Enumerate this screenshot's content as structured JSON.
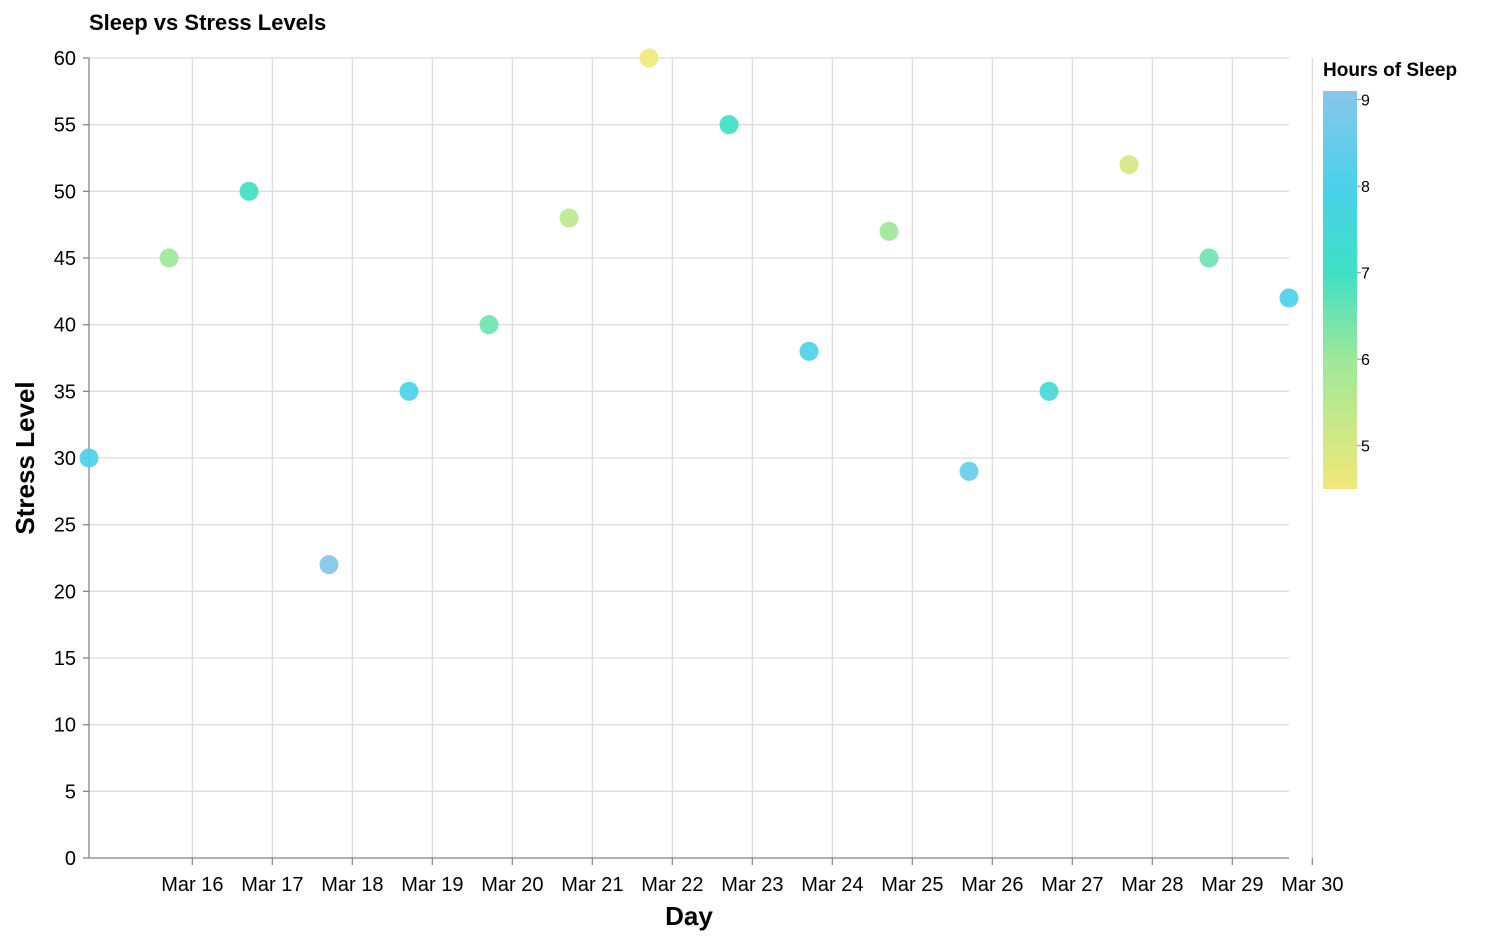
{
  "chart_data": {
    "type": "scatter",
    "title": "Sleep vs Stress Levels",
    "xlabel": "Day",
    "ylabel": "Stress Level",
    "x_ticks": [
      "Mar 16",
      "Mar 17",
      "Mar 18",
      "Mar 19",
      "Mar 20",
      "Mar 21",
      "Mar 22",
      "Mar 23",
      "Mar 24",
      "Mar 25",
      "Mar 26",
      "Mar 27",
      "Mar 28",
      "Mar 29",
      "Mar 30"
    ],
    "ylim": [
      0,
      60
    ],
    "y_ticks": [
      0,
      5,
      10,
      15,
      20,
      25,
      30,
      35,
      40,
      45,
      50,
      55,
      60
    ],
    "grid": true,
    "legend": {
      "title": "Hours of Sleep",
      "placement": "right",
      "type": "gradient",
      "domain": [
        4.5,
        9.1
      ],
      "labels": [
        5,
        6,
        7,
        8,
        9
      ],
      "colors": [
        "#f2e879",
        "#9ee89a",
        "#3fe0c5",
        "#4ad2ea",
        "#88c6ea"
      ],
      "stops": [
        4.5,
        6,
        7,
        8,
        9.1
      ]
    },
    "points": [
      {
        "date": "2023-03-15",
        "stress": 30,
        "sleep": 8.0
      },
      {
        "date": "2023-03-16",
        "stress": 45,
        "sleep": 6.0
      },
      {
        "date": "2023-03-17",
        "stress": 50,
        "sleep": 7.0
      },
      {
        "date": "2023-03-18",
        "stress": 22,
        "sleep": 9.0
      },
      {
        "date": "2023-03-19",
        "stress": 35,
        "sleep": 8.0
      },
      {
        "date": "2023-03-20",
        "stress": 40,
        "sleep": 6.5
      },
      {
        "date": "2023-03-21",
        "stress": 48,
        "sleep": 5.5
      },
      {
        "date": "2023-03-22",
        "stress": 60,
        "sleep": 4.5
      },
      {
        "date": "2023-03-23",
        "stress": 55,
        "sleep": 7.0
      },
      {
        "date": "2023-03-24",
        "stress": 38,
        "sleep": 8.0
      },
      {
        "date": "2023-03-25",
        "stress": 47,
        "sleep": 6.0
      },
      {
        "date": "2023-03-26",
        "stress": 29,
        "sleep": 8.5
      },
      {
        "date": "2023-03-27",
        "stress": 35,
        "sleep": 7.5
      },
      {
        "date": "2023-03-28",
        "stress": 52,
        "sleep": 5.0
      },
      {
        "date": "2023-03-29",
        "stress": 45,
        "sleep": 6.5
      },
      {
        "date": "2023-03-30",
        "stress": 42,
        "sleep": 8.0
      }
    ]
  }
}
